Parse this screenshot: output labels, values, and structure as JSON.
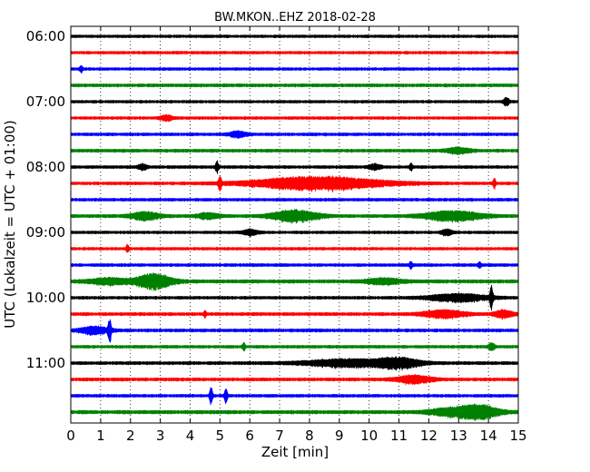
{
  "chart_data": {
    "type": "line",
    "title": "BW.MKON..EHZ 2018-02-28",
    "xlabel": "Zeit  [min]",
    "ylabel": "UTC (Lokalzeit = UTC + 01:00)",
    "xlim": [
      0,
      15
    ],
    "x_ticks": [
      "0",
      "1",
      "2",
      "3",
      "4",
      "5",
      "6",
      "7",
      "8",
      "9",
      "10",
      "11",
      "12",
      "13",
      "14",
      "15"
    ],
    "y_ticks": [
      "06:00",
      "07:00",
      "08:00",
      "09:00",
      "10:00",
      "11:00"
    ],
    "grid_x": "dotted",
    "trace_interval_min": 15,
    "colors": [
      "#000000",
      "#ff0000",
      "#0000ff",
      "#008000"
    ],
    "series": [
      {
        "start": "06:00",
        "color": "#000000",
        "noise": 1.6,
        "events": []
      },
      {
        "start": "06:15",
        "color": "#ff0000",
        "noise": 1.6,
        "events": []
      },
      {
        "start": "06:30",
        "color": "#0000ff",
        "noise": 1.6,
        "events": [
          {
            "t": 0.35,
            "w": 0.05,
            "a": 4
          }
        ]
      },
      {
        "start": "06:45",
        "color": "#008000",
        "noise": 1.8,
        "events": []
      },
      {
        "start": "07:00",
        "color": "#000000",
        "noise": 1.6,
        "events": [
          {
            "t": 14.6,
            "w": 0.1,
            "a": 4
          }
        ]
      },
      {
        "start": "07:15",
        "color": "#ff0000",
        "noise": 1.6,
        "events": [
          {
            "t": 3.2,
            "w": 0.2,
            "a": 3
          }
        ]
      },
      {
        "start": "07:30",
        "color": "#0000ff",
        "noise": 1.7,
        "events": [
          {
            "t": 5.6,
            "w": 0.3,
            "a": 3
          }
        ]
      },
      {
        "start": "07:45",
        "color": "#008000",
        "noise": 1.8,
        "events": [
          {
            "t": 13.0,
            "w": 0.4,
            "a": 3
          }
        ]
      },
      {
        "start": "08:00",
        "color": "#000000",
        "noise": 1.7,
        "events": [
          {
            "t": 2.4,
            "w": 0.15,
            "a": 3
          },
          {
            "t": 4.9,
            "w": 0.05,
            "a": 6
          },
          {
            "t": 10.2,
            "w": 0.2,
            "a": 3
          },
          {
            "t": 11.4,
            "w": 0.05,
            "a": 4
          }
        ]
      },
      {
        "start": "08:15",
        "color": "#ff0000",
        "noise": 1.7,
        "events": [
          {
            "t": 5.0,
            "w": 0.05,
            "a": 8
          },
          {
            "t": 8.3,
            "w": 2.2,
            "a": 7
          },
          {
            "t": 14.2,
            "w": 0.05,
            "a": 5
          }
        ]
      },
      {
        "start": "08:30",
        "color": "#0000ff",
        "noise": 1.7,
        "events": []
      },
      {
        "start": "08:45",
        "color": "#008000",
        "noise": 1.8,
        "events": [
          {
            "t": 2.5,
            "w": 0.5,
            "a": 4
          },
          {
            "t": 4.6,
            "w": 0.4,
            "a": 3
          },
          {
            "t": 7.5,
            "w": 0.8,
            "a": 6
          },
          {
            "t": 12.8,
            "w": 1.0,
            "a": 5
          }
        ]
      },
      {
        "start": "09:00",
        "color": "#000000",
        "noise": 1.6,
        "events": [
          {
            "t": 6.0,
            "w": 0.25,
            "a": 3
          },
          {
            "t": 12.6,
            "w": 0.2,
            "a": 3
          }
        ]
      },
      {
        "start": "09:15",
        "color": "#ff0000",
        "noise": 1.6,
        "events": [
          {
            "t": 1.9,
            "w": 0.05,
            "a": 4
          }
        ]
      },
      {
        "start": "09:30",
        "color": "#0000ff",
        "noise": 1.7,
        "events": [
          {
            "t": 11.4,
            "w": 0.05,
            "a": 4
          },
          {
            "t": 13.7,
            "w": 0.05,
            "a": 3
          }
        ]
      },
      {
        "start": "09:45",
        "color": "#008000",
        "noise": 2.0,
        "events": [
          {
            "t": 2.8,
            "w": 0.6,
            "a": 8
          },
          {
            "t": 1.3,
            "w": 0.7,
            "a": 3
          },
          {
            "t": 10.5,
            "w": 0.6,
            "a": 3
          }
        ]
      },
      {
        "start": "10:00",
        "color": "#000000",
        "noise": 1.7,
        "events": [
          {
            "t": 13.0,
            "w": 1.0,
            "a": 4
          },
          {
            "t": 14.1,
            "w": 0.05,
            "a": 13
          }
        ]
      },
      {
        "start": "10:15",
        "color": "#ff0000",
        "noise": 1.8,
        "events": [
          {
            "t": 12.5,
            "w": 0.7,
            "a": 4
          },
          {
            "t": 14.5,
            "w": 0.3,
            "a": 4
          },
          {
            "t": 4.5,
            "w": 0.05,
            "a": 3
          }
        ]
      },
      {
        "start": "10:30",
        "color": "#0000ff",
        "noise": 1.8,
        "events": [
          {
            "t": 1.3,
            "w": 0.05,
            "a": 13
          },
          {
            "t": 0.8,
            "w": 0.5,
            "a": 4
          }
        ]
      },
      {
        "start": "10:45",
        "color": "#008000",
        "noise": 1.7,
        "events": [
          {
            "t": 5.8,
            "w": 0.05,
            "a": 4
          },
          {
            "t": 14.1,
            "w": 0.1,
            "a": 4
          }
        ]
      },
      {
        "start": "11:00",
        "color": "#000000",
        "noise": 1.8,
        "events": [
          {
            "t": 9.3,
            "w": 1.5,
            "a": 4
          },
          {
            "t": 11.0,
            "w": 0.7,
            "a": 5
          }
        ]
      },
      {
        "start": "11:15",
        "color": "#ff0000",
        "noise": 1.8,
        "events": [
          {
            "t": 11.5,
            "w": 0.6,
            "a": 4
          }
        ]
      },
      {
        "start": "11:30",
        "color": "#0000ff",
        "noise": 1.7,
        "events": [
          {
            "t": 4.7,
            "w": 0.05,
            "a": 10
          },
          {
            "t": 5.2,
            "w": 0.05,
            "a": 7
          }
        ]
      },
      {
        "start": "11:45",
        "color": "#008000",
        "noise": 2.0,
        "events": [
          {
            "t": 13.6,
            "w": 0.7,
            "a": 8
          },
          {
            "t": 12.5,
            "w": 0.6,
            "a": 3
          }
        ]
      }
    ]
  }
}
